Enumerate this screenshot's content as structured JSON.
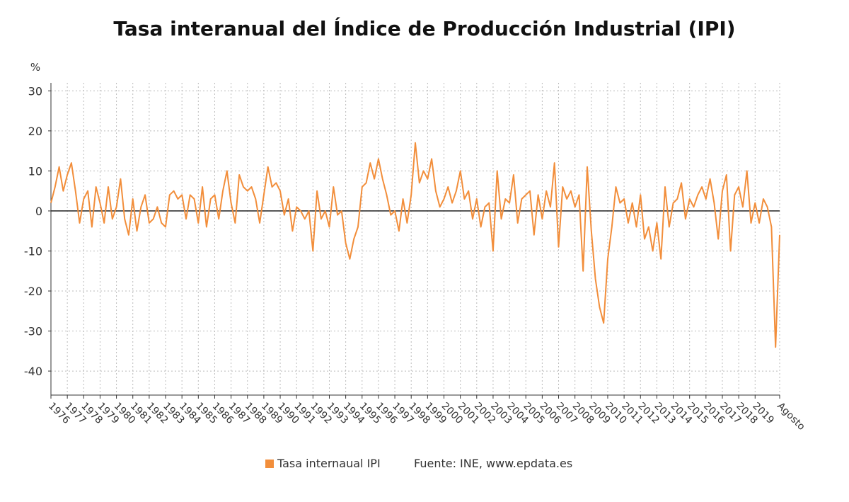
{
  "chart_data": {
    "type": "line",
    "title": "Tasa interanual del Índice de Producción Industrial (IPI)",
    "y_unit": "%",
    "source": "Fuente: INE, www.epdata.es",
    "grid": true,
    "ylim": [
      -46,
      32
    ],
    "yticks": [
      -40,
      -30,
      -20,
      -10,
      0,
      10,
      20,
      30
    ],
    "categories": [
      "1976",
      null,
      null,
      null,
      "1977",
      null,
      null,
      null,
      "1978",
      null,
      null,
      null,
      "1979",
      null,
      null,
      null,
      "1980",
      null,
      null,
      null,
      "1981",
      null,
      null,
      null,
      "1982",
      null,
      null,
      null,
      "1983",
      null,
      null,
      null,
      "1984",
      null,
      null,
      null,
      "1985",
      null,
      null,
      null,
      "1986",
      null,
      null,
      null,
      "1987",
      null,
      null,
      null,
      "1988",
      null,
      null,
      null,
      "1989",
      null,
      null,
      null,
      "1990",
      null,
      null,
      null,
      "1991",
      null,
      null,
      null,
      "1992",
      null,
      null,
      null,
      "1993",
      null,
      null,
      null,
      "1994",
      null,
      null,
      null,
      "1995",
      null,
      null,
      null,
      "1996",
      null,
      null,
      null,
      "1997",
      null,
      null,
      null,
      "1998",
      null,
      null,
      null,
      "1999",
      null,
      null,
      null,
      "2000",
      null,
      null,
      null,
      "2001",
      null,
      null,
      null,
      "2002",
      null,
      null,
      null,
      "2003",
      null,
      null,
      null,
      "2004",
      null,
      null,
      null,
      "2005",
      null,
      null,
      null,
      "2006",
      null,
      null,
      null,
      "2007",
      null,
      null,
      null,
      "2008",
      null,
      null,
      null,
      "2009",
      null,
      null,
      null,
      "2010",
      null,
      null,
      null,
      "2011",
      null,
      null,
      null,
      "2012",
      null,
      null,
      null,
      "2013",
      null,
      null,
      null,
      "2014",
      null,
      null,
      null,
      "2015",
      null,
      null,
      null,
      "2016",
      null,
      null,
      null,
      "2017",
      null,
      null,
      null,
      "2018",
      null,
      null,
      null,
      "2019",
      null,
      null,
      null,
      null,
      null,
      "Agosto"
    ],
    "series": [
      {
        "name": "Tasa internaual IPI",
        "color": "#f28e3b",
        "values": [
          2,
          6,
          11,
          5,
          9,
          12,
          5,
          -3,
          3,
          5,
          -4,
          6,
          2,
          -3,
          6,
          -2,
          1,
          8,
          -2,
          -6,
          3,
          -5,
          1,
          4,
          -3,
          -2,
          1,
          -3,
          -4,
          4,
          5,
          3,
          4,
          -2,
          4,
          3,
          -3,
          6,
          -4,
          3,
          4,
          -2,
          5,
          10,
          2,
          -3,
          9,
          6,
          5,
          6,
          3,
          -3,
          4,
          11,
          6,
          7,
          5,
          -1,
          3,
          -5,
          1,
          0,
          -2,
          0,
          -10,
          5,
          -2,
          0,
          -4,
          6,
          -1,
          0,
          -8,
          -12,
          -7,
          -4,
          6,
          7,
          12,
          8,
          13,
          8,
          4,
          -1,
          0,
          -5,
          3,
          -3,
          4,
          17,
          7,
          10,
          8,
          13,
          5,
          1,
          3,
          6,
          2,
          5,
          10,
          3,
          5,
          -2,
          3,
          -4,
          1,
          2,
          -10,
          10,
          -2,
          3,
          2,
          9,
          -3,
          3,
          4,
          5,
          -6,
          4,
          -2,
          5,
          1,
          12,
          -9,
          6,
          3,
          5,
          1,
          4,
          -15,
          11,
          -5,
          -17,
          -24,
          -28,
          -12,
          -4,
          6,
          2,
          3,
          -3,
          2,
          -4,
          4,
          -7,
          -4,
          -10,
          -3,
          -12,
          6,
          -4,
          2,
          3,
          7,
          -2,
          3,
          1,
          4,
          6,
          3,
          8,
          2,
          -7,
          5,
          9,
          -10,
          4,
          6,
          1,
          10,
          -3,
          2,
          -3,
          3,
          1,
          -4,
          -34,
          -6
        ]
      }
    ]
  }
}
